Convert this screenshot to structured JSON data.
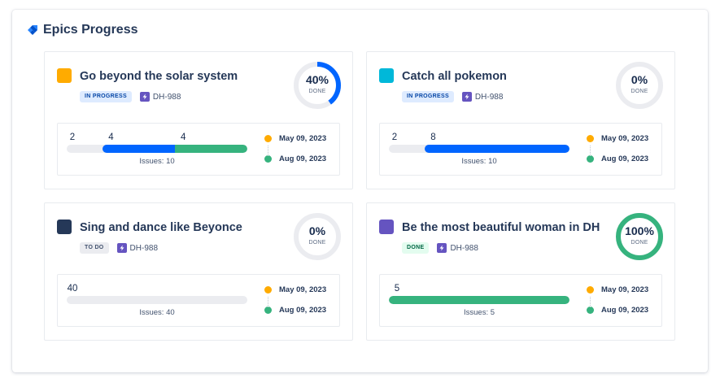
{
  "header": {
    "title": "Epics Progress",
    "icon": "jira-logo-icon"
  },
  "colors": {
    "blue": "#0065ff",
    "green": "#36b37e",
    "grey": "#ebecf0",
    "start_dot": "#ffab00",
    "end_dot": "#36b37e"
  },
  "epics": [
    {
      "title": "Go beyond the solar system",
      "color": "#ffab00",
      "status": "IN PROGRESS",
      "key": "DH-988",
      "percent": "40%",
      "percent_value": 0.4,
      "done_label": "DONE",
      "counts": {
        "todo": 2,
        "in_progress": 4,
        "done": 4
      },
      "labels": {
        "todo": "2",
        "in_progress": "4",
        "done": "4"
      },
      "issues": "Issues: 10",
      "start_date": "May 09, 2023",
      "end_date": "Aug 09, 2023"
    },
    {
      "title": "Catch all pokemon",
      "color": "#00b8d9",
      "status": "IN PROGRESS",
      "key": "DH-988",
      "percent": "0%",
      "percent_value": 0,
      "done_label": "DONE",
      "counts": {
        "todo": 2,
        "in_progress": 8,
        "done": 0
      },
      "labels": {
        "todo": "2",
        "in_progress": "8",
        "done": ""
      },
      "issues": "Issues: 10",
      "start_date": "May 09, 2023",
      "end_date": "Aug 09, 2023"
    },
    {
      "title": "Sing and dance like Beyonce",
      "color": "#253858",
      "status": "TO DO",
      "key": "DH-988",
      "percent": "0%",
      "percent_value": 0,
      "done_label": "DONE",
      "counts": {
        "todo": 40,
        "in_progress": 0,
        "done": 0
      },
      "labels": {
        "todo": "40",
        "in_progress": "",
        "done": ""
      },
      "issues": "Issues: 40",
      "start_date": "May 09, 2023",
      "end_date": "Aug 09, 2023"
    },
    {
      "title": "Be the most beautiful woman in DH",
      "color": "#6554c0",
      "status": "DONE",
      "key": "DH-988",
      "percent": "100%",
      "percent_value": 1,
      "done_label": "DONE",
      "counts": {
        "todo": 0,
        "in_progress": 0,
        "done": 5
      },
      "labels": {
        "todo": "",
        "in_progress": "",
        "done": "5"
      },
      "issues": "Issues: 5",
      "start_date": "May 09, 2023",
      "end_date": "Aug 09, 2023"
    }
  ]
}
